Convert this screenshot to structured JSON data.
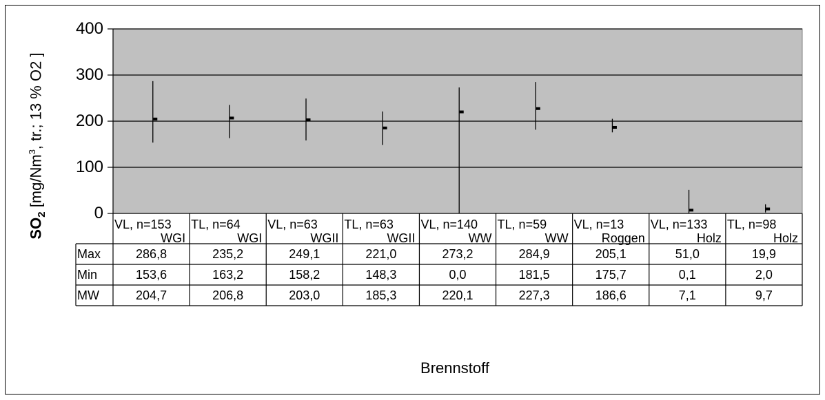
{
  "chart_data": {
    "type": "table",
    "chart_kind": "error-bar chart with min/max range and mean marker, plus data table",
    "ylabel_parts": [
      "SO",
      "2",
      " [mg/Nm",
      "3",
      ", tr.; 13 % O2 ]"
    ],
    "xlabel": "Brennstoff",
    "ylim": [
      0,
      400
    ],
    "yticks": [
      "400",
      "300",
      "200",
      "100",
      "0"
    ],
    "grid": true,
    "plot_background": "#c0c0c0",
    "categories": [
      {
        "line1": "VL, n=153",
        "line2": "WGI"
      },
      {
        "line1": "TL, n=64",
        "line2": "WGI"
      },
      {
        "line1": "VL, n=63",
        "line2": "WGII"
      },
      {
        "line1": "TL, n=63",
        "line2": "WGII"
      },
      {
        "line1": "VL, n=140",
        "line2": "WW"
      },
      {
        "line1": "TL, n=59",
        "line2": "WW"
      },
      {
        "line1": "VL, n=13",
        "line2": "Roggen"
      },
      {
        "line1": "VL, n=133",
        "line2": "Holz"
      },
      {
        "line1": "TL, n=98",
        "line2": "Holz"
      }
    ],
    "rows": [
      {
        "label": "Max",
        "cells": [
          "286,8",
          "235,2",
          "249,1",
          "221,0",
          "273,2",
          "284,9",
          "205,1",
          "51,0",
          "19,9"
        ]
      },
      {
        "label": "Min",
        "cells": [
          "153,6",
          "163,2",
          "158,2",
          "148,3",
          "0,0",
          "181,5",
          "175,7",
          "0,1",
          "2,0"
        ]
      },
      {
        "label": "MW",
        "cells": [
          "204,7",
          "206,8",
          "203,0",
          "185,3",
          "220,1",
          "227,3",
          "186,6",
          "7,1",
          "9,7"
        ]
      }
    ],
    "series": [
      {
        "name": "Max",
        "values": [
          286.8,
          235.2,
          249.1,
          221.0,
          273.2,
          284.9,
          205.1,
          51.0,
          19.9
        ]
      },
      {
        "name": "Min",
        "values": [
          153.6,
          163.2,
          158.2,
          148.3,
          0.0,
          181.5,
          175.7,
          0.1,
          2.0
        ]
      },
      {
        "name": "MW",
        "values": [
          204.7,
          206.8,
          203.0,
          185.3,
          220.1,
          227.3,
          186.6,
          7.1,
          9.7
        ]
      }
    ]
  }
}
